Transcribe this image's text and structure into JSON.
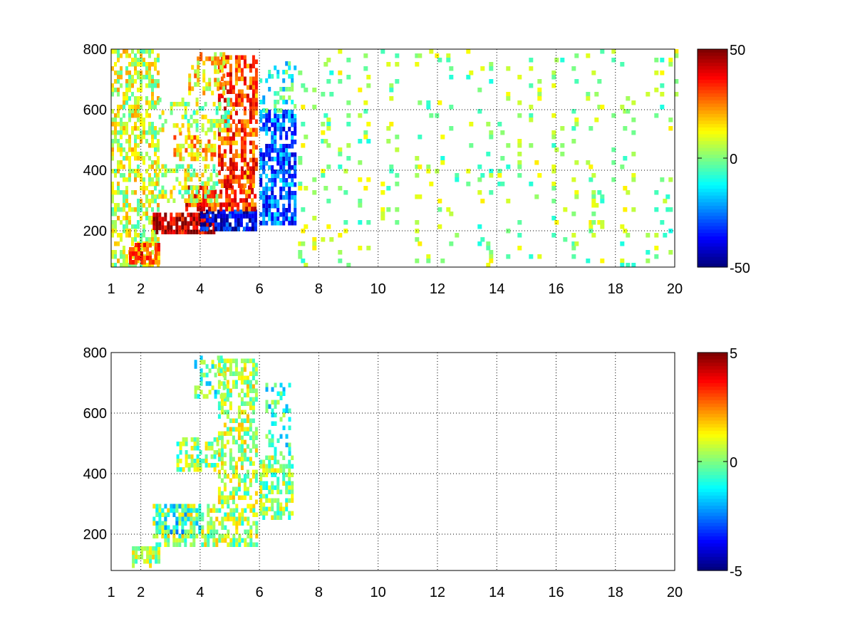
{
  "figure": {
    "background": "#ffffff",
    "colormap": "jet"
  },
  "chart_data": [
    {
      "type": "heatmap",
      "title": "",
      "xlabel": "",
      "ylabel": "",
      "xlim": [
        1,
        20
      ],
      "ylim": [
        80,
        800
      ],
      "xticks": [
        1,
        2,
        4,
        6,
        8,
        10,
        12,
        14,
        16,
        18,
        20
      ],
      "yticks": [
        200,
        400,
        600,
        800
      ],
      "grid": true,
      "colorbar": {
        "min": -50,
        "max": 50,
        "ticks": [
          50,
          0,
          -50
        ]
      },
      "values": [
        {
          "x_range": [
            1.0,
            2.6
          ],
          "y_range": [
            80,
            800
          ],
          "value": 8,
          "density": 0.55,
          "note_value": "noisy"
        },
        {
          "x_range": [
            1.6,
            2.6
          ],
          "y_range": [
            90,
            160
          ],
          "value": 28,
          "density": 0.8
        },
        {
          "x_range": [
            2.4,
            4.5
          ],
          "y_range": [
            190,
            260
          ],
          "value": 45,
          "density": 0.85
        },
        {
          "x_range": [
            4.0,
            5.9
          ],
          "y_range": [
            210,
            270
          ],
          "value": -38,
          "density": 0.85
        },
        {
          "x_range": [
            3.5,
            5.9
          ],
          "y_range": [
            270,
            350
          ],
          "value": 32,
          "density": 0.7
        },
        {
          "x_range": [
            4.6,
            5.9
          ],
          "y_range": [
            350,
            780
          ],
          "value": 30,
          "density": 0.65
        },
        {
          "x_range": [
            2.5,
            4.6
          ],
          "y_range": [
            300,
            420
          ],
          "value": 6,
          "density": 0.45
        },
        {
          "x_range": [
            3.1,
            4.5
          ],
          "y_range": [
            440,
            530
          ],
          "value": 18,
          "density": 0.6
        },
        {
          "x_range": [
            3.6,
            4.8
          ],
          "y_range": [
            650,
            790
          ],
          "value": 14,
          "density": 0.5
        },
        {
          "x_range": [
            2.6,
            5.0
          ],
          "y_range": [
            540,
            640
          ],
          "value": 4,
          "density": 0.35
        },
        {
          "x_range": [
            6.0,
            7.2
          ],
          "y_range": [
            220,
            600
          ],
          "value": -28,
          "density": 0.7
        },
        {
          "x_range": [
            6.0,
            7.2
          ],
          "y_range": [
            600,
            760
          ],
          "value": -8,
          "density": 0.35
        },
        {
          "x_range": [
            7.3,
            20.0
          ],
          "y_range": [
            80,
            800
          ],
          "value": 2,
          "density": 0.12,
          "note_value": "sparse"
        }
      ]
    },
    {
      "type": "heatmap",
      "title": "",
      "xlabel": "",
      "ylabel": "",
      "xlim": [
        1,
        20
      ],
      "ylim": [
        80,
        800
      ],
      "xticks": [
        1,
        2,
        4,
        6,
        8,
        10,
        12,
        14,
        16,
        18,
        20
      ],
      "yticks": [
        200,
        400,
        600,
        800
      ],
      "grid": true,
      "colorbar": {
        "min": -5,
        "max": 5,
        "ticks": [
          5,
          0,
          -5
        ]
      },
      "values": [
        {
          "x_range": [
            1.7,
            2.6
          ],
          "y_range": [
            90,
            160
          ],
          "value": 0.3,
          "density": 0.6
        },
        {
          "x_range": [
            2.4,
            5.9
          ],
          "y_range": [
            160,
            300
          ],
          "value": 0.4,
          "density": 0.6
        },
        {
          "x_range": [
            2.5,
            4.0
          ],
          "y_range": [
            200,
            300
          ],
          "value": -1.2,
          "density": 0.5
        },
        {
          "x_range": [
            3.2,
            4.6
          ],
          "y_range": [
            420,
            520
          ],
          "value": 0.2,
          "density": 0.55
        },
        {
          "x_range": [
            4.6,
            5.9
          ],
          "y_range": [
            300,
            780
          ],
          "value": 0.5,
          "density": 0.55
        },
        {
          "x_range": [
            3.8,
            4.8
          ],
          "y_range": [
            650,
            790
          ],
          "value": -0.5,
          "density": 0.4
        },
        {
          "x_range": [
            6.0,
            7.1
          ],
          "y_range": [
            260,
            460
          ],
          "value": 0.2,
          "density": 0.55
        },
        {
          "x_range": [
            6.2,
            7.0
          ],
          "y_range": [
            460,
            700
          ],
          "value": -0.8,
          "density": 0.3
        }
      ]
    }
  ]
}
